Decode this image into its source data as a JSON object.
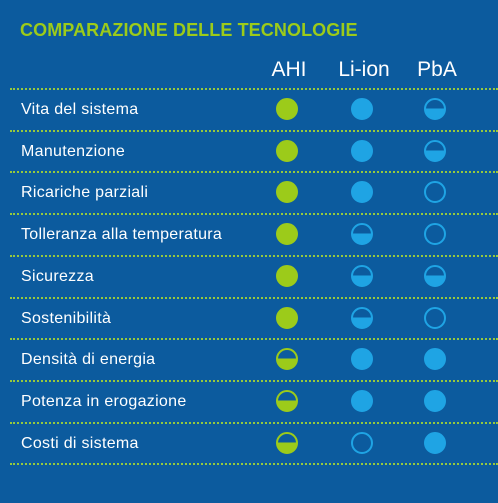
{
  "title": "COMPARAZIONE DELLE TECNOLOGIE",
  "columns": [
    "AHI",
    "Li-ion",
    "PbA"
  ],
  "colors": {
    "background": "#0c5b9e",
    "green": "#9ccb1a",
    "blue": "#1fa4e4",
    "separator": "#96c93d"
  },
  "legend_levels": [
    "full",
    "half",
    "empty"
  ],
  "rows": [
    {
      "label": "Vita del sistema",
      "ratings": [
        "full",
        "full",
        "half"
      ]
    },
    {
      "label": "Manutenzione",
      "ratings": [
        "full",
        "full",
        "half"
      ]
    },
    {
      "label": "Ricariche parziali",
      "ratings": [
        "full",
        "full",
        "empty"
      ]
    },
    {
      "label": "Tolleranza alla temperatura",
      "ratings": [
        "full",
        "half",
        "empty"
      ]
    },
    {
      "label": "Sicurezza",
      "ratings": [
        "full",
        "half",
        "half"
      ]
    },
    {
      "label": "Sostenibilità",
      "ratings": [
        "full",
        "half",
        "empty"
      ]
    },
    {
      "label": "Densità di energia",
      "ratings": [
        "half",
        "full",
        "full"
      ]
    },
    {
      "label": "Potenza in erogazione",
      "ratings": [
        "half",
        "full",
        "full"
      ]
    },
    {
      "label": "Costi di sistema",
      "ratings": [
        "half",
        "empty",
        "full"
      ]
    }
  ]
}
